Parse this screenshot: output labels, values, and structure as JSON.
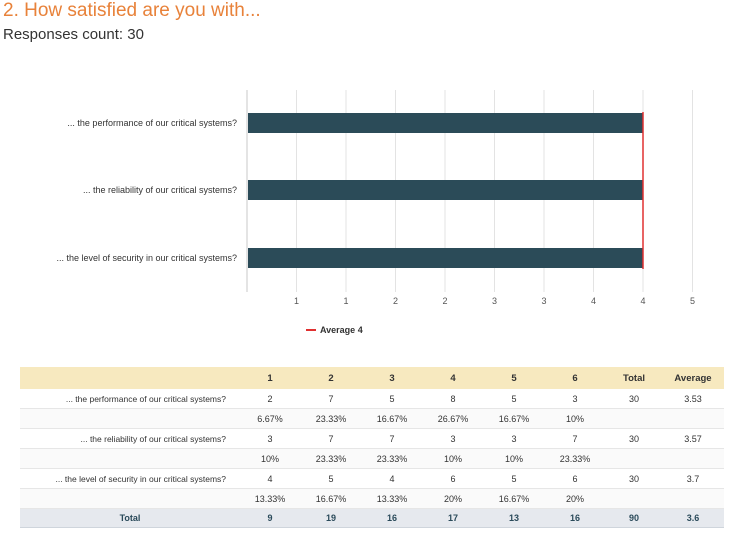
{
  "header": {
    "title": "2. How satisfied are you with...",
    "responses": "Responses count: 30"
  },
  "chart_data": {
    "type": "bar",
    "orientation": "horizontal",
    "categories": [
      "... the performance of our critical systems?",
      "... the reliability of our critical systems?",
      "... the level of security in our critical systems?"
    ],
    "values": [
      4,
      4,
      4
    ],
    "bar_color": "#2b4b58",
    "x_ticks": [
      "1",
      "1",
      "2",
      "2",
      "3",
      "3",
      "4",
      "4",
      "5"
    ],
    "xlim": [
      0,
      5
    ],
    "average": {
      "label": "Average 4",
      "value": 4,
      "color": "#e03030"
    },
    "legend_position": "bottom-center",
    "grid": true
  },
  "table": {
    "headers": [
      "",
      "1",
      "2",
      "3",
      "4",
      "5",
      "6",
      "Total",
      "Average"
    ],
    "rows": [
      {
        "label": "... the performance of our critical systems?",
        "counts": [
          "2",
          "7",
          "5",
          "8",
          "5",
          "3"
        ],
        "pcts": [
          "6.67%",
          "23.33%",
          "16.67%",
          "26.67%",
          "16.67%",
          "10%"
        ],
        "total": "30",
        "average": "3.53"
      },
      {
        "label": "... the reliability of our critical systems?",
        "counts": [
          "3",
          "7",
          "7",
          "3",
          "3",
          "7"
        ],
        "pcts": [
          "10%",
          "23.33%",
          "23.33%",
          "10%",
          "10%",
          "23.33%"
        ],
        "total": "30",
        "average": "3.57"
      },
      {
        "label": "... the level of security in our critical systems?",
        "counts": [
          "4",
          "5",
          "4",
          "6",
          "5",
          "6"
        ],
        "pcts": [
          "13.33%",
          "16.67%",
          "13.33%",
          "20%",
          "16.67%",
          "20%"
        ],
        "total": "30",
        "average": "3.7"
      }
    ],
    "total_row": {
      "label": "Total",
      "values": [
        "9",
        "19",
        "16",
        "17",
        "13",
        "16",
        "90",
        "3.6"
      ]
    }
  }
}
